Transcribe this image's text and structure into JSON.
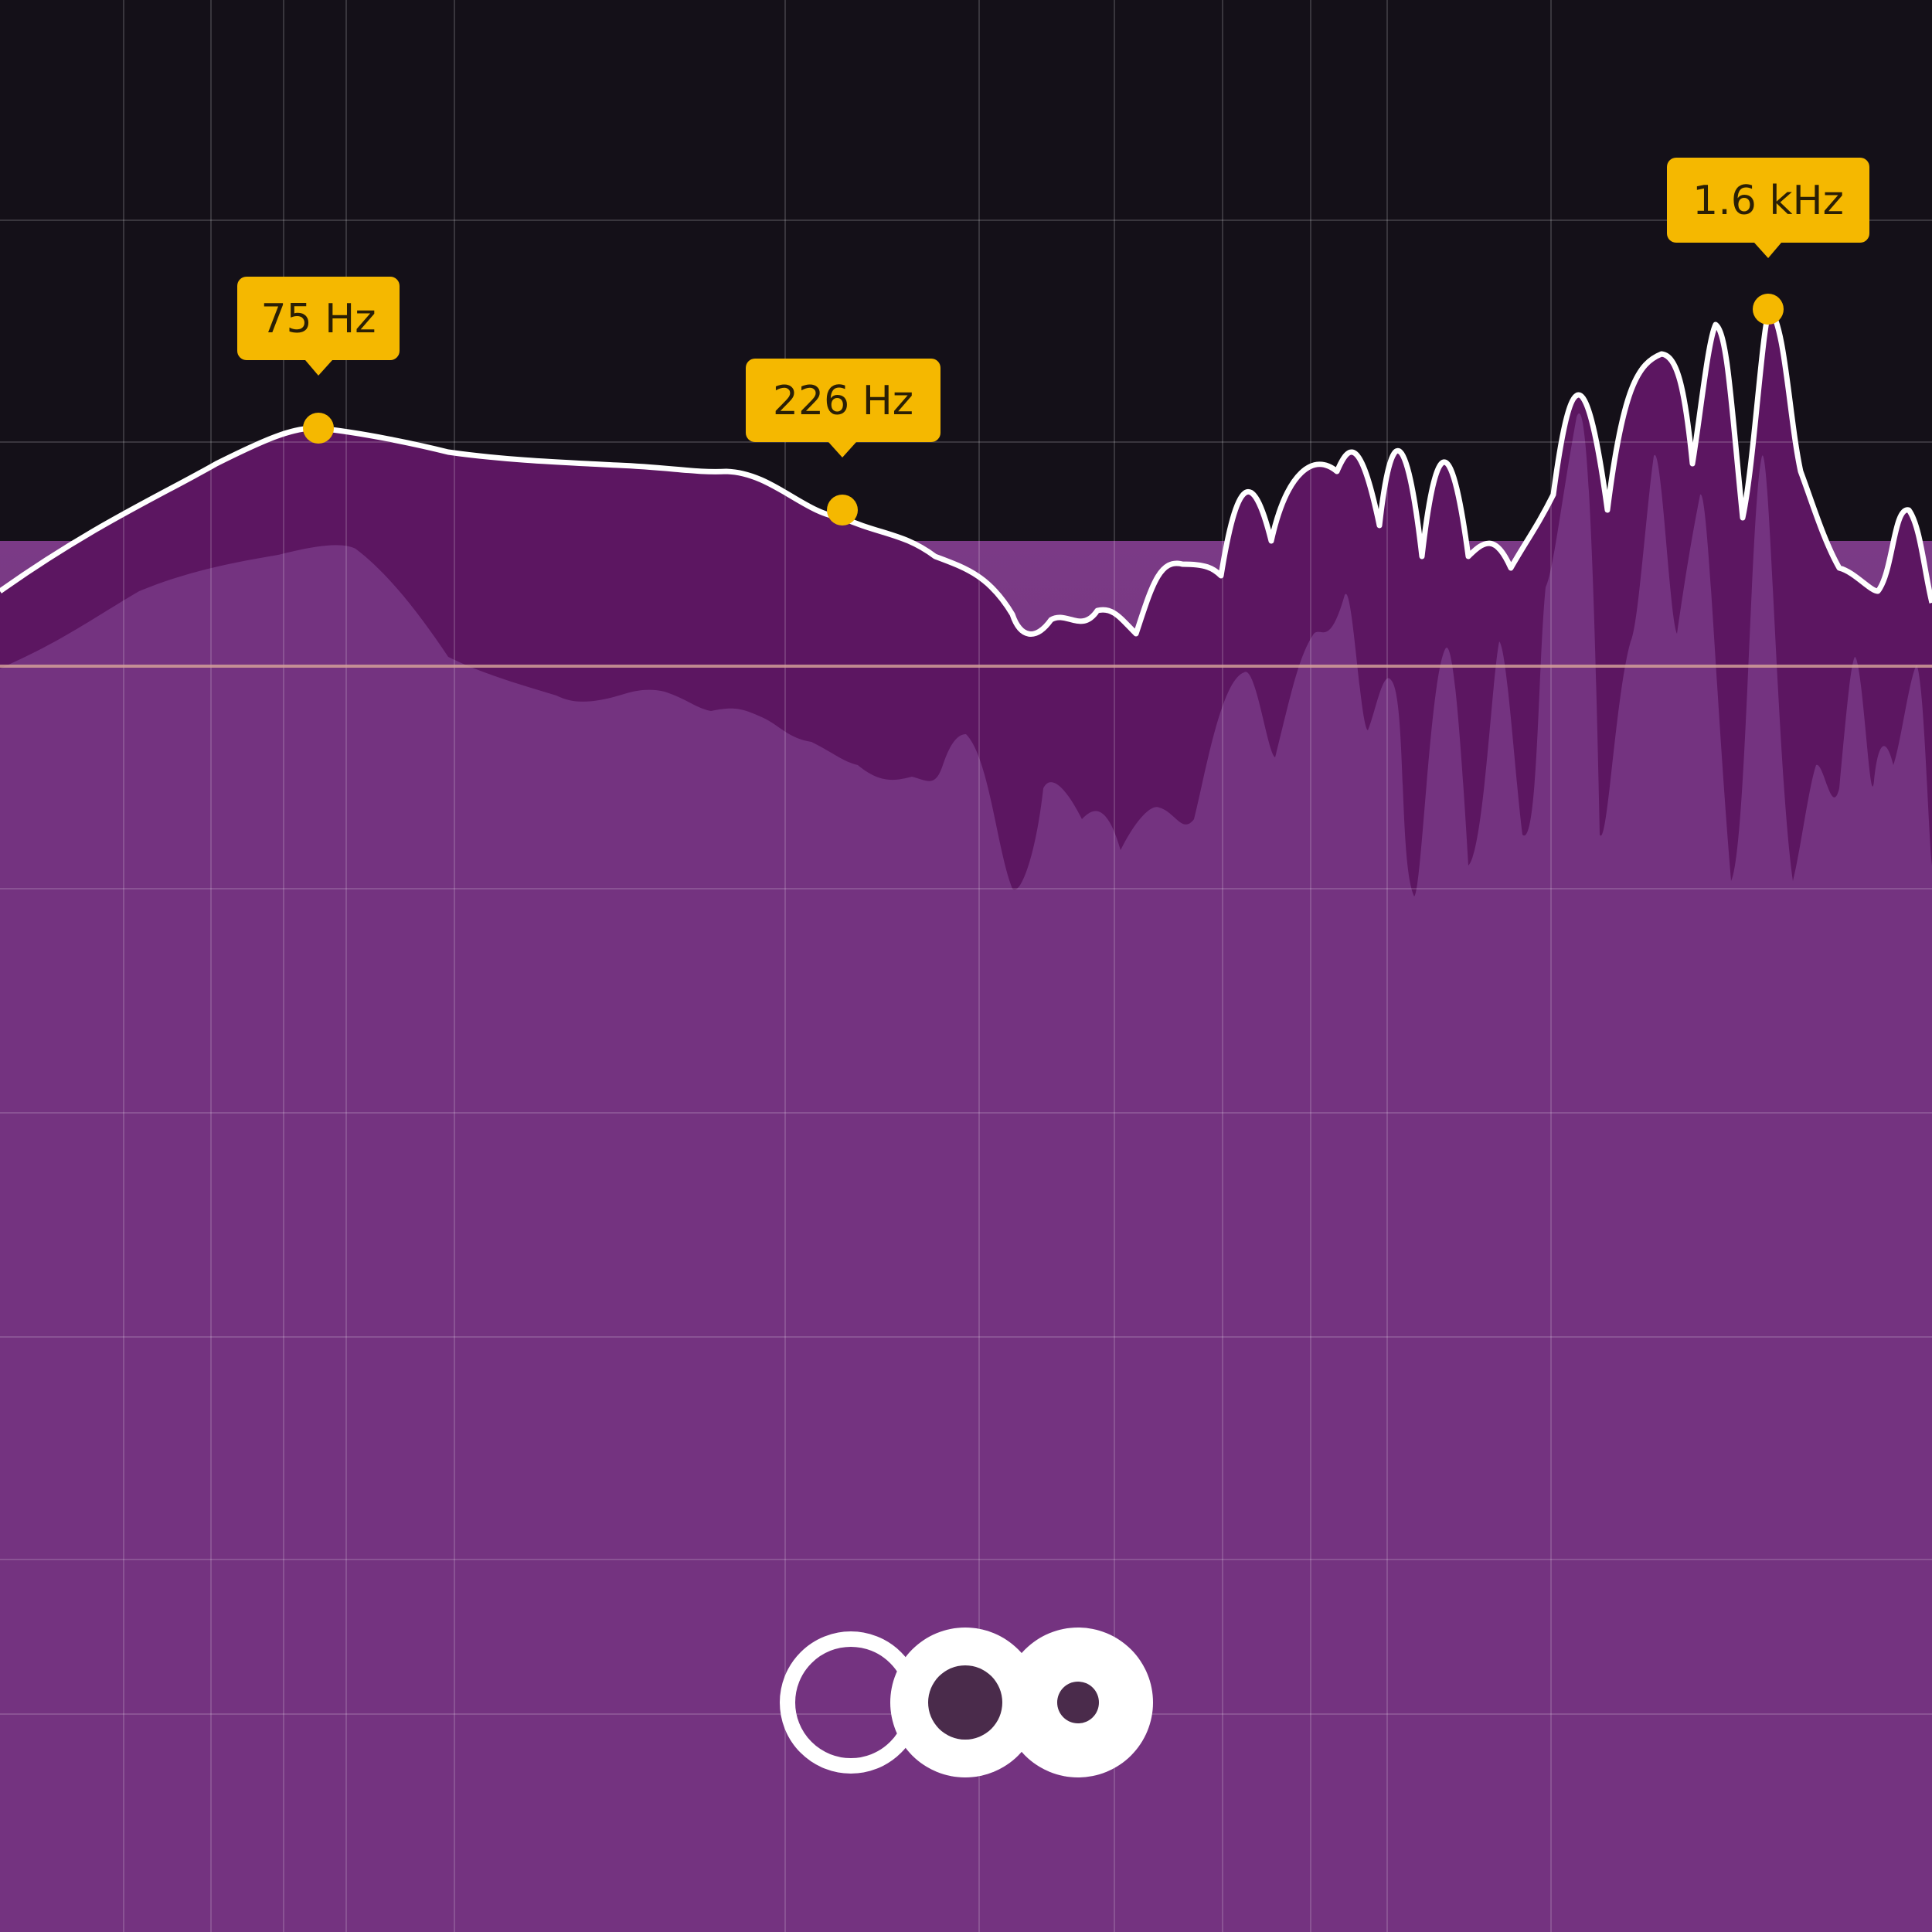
{
  "colors": {
    "background": "#141018",
    "accent": "#f5b800",
    "curve": "#ffffff",
    "fill_dark": "#5b1561",
    "fill_light": "#7a3a86",
    "zero_line": "#d7a59a",
    "grid": "rgba(255,255,255,0.16)"
  },
  "markers": [
    {
      "label": "75 Hz"
    },
    {
      "label": "226 Hz"
    },
    {
      "label": "1.6 kHz"
    }
  ],
  "logo": {
    "icon": "three-circles-logo-icon"
  }
}
